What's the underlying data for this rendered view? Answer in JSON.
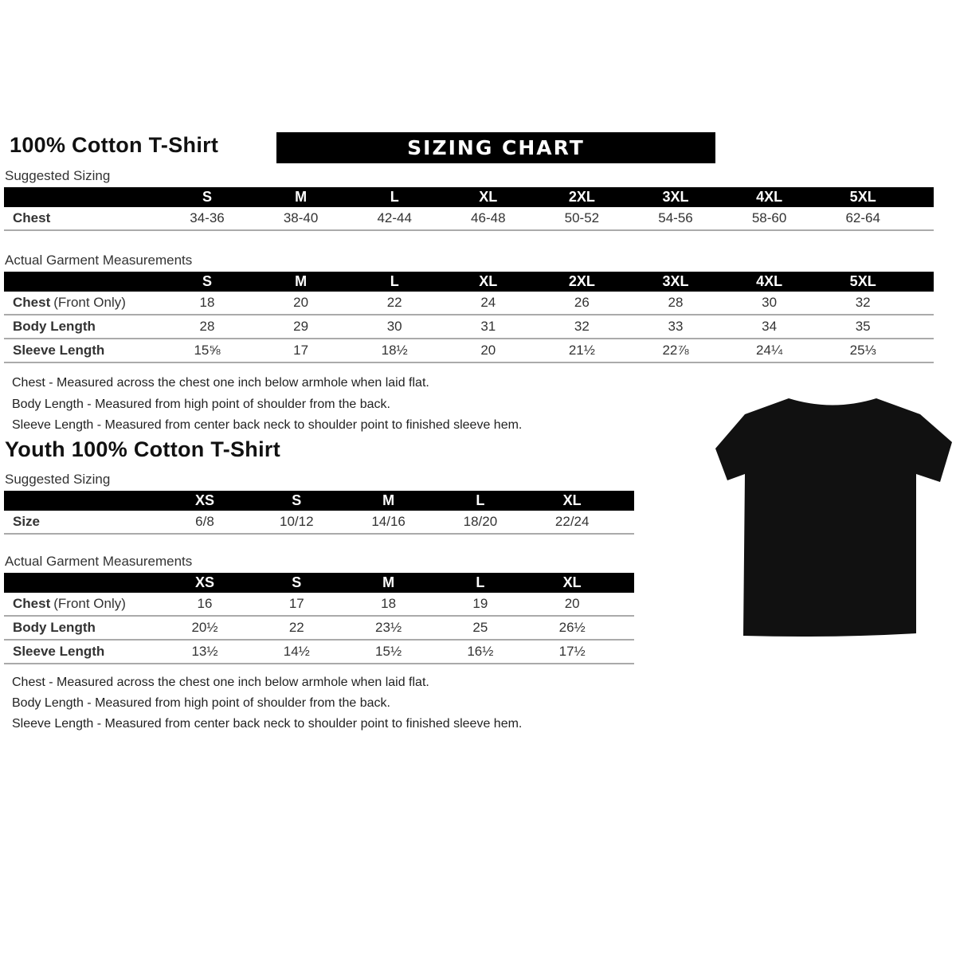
{
  "adult": {
    "title": "100% Cotton T-Shirt",
    "banner": "SIZING CHART",
    "suggested_label": "Suggested Sizing",
    "sizes": [
      "S",
      "M",
      "L",
      "XL",
      "2XL",
      "3XL",
      "4XL",
      "5XL"
    ],
    "suggested_rows": [
      {
        "label": "Chest",
        "values": [
          "34-36",
          "38-40",
          "42-44",
          "46-48",
          "50-52",
          "54-56",
          "58-60",
          "62-64"
        ]
      }
    ],
    "actual_label": "Actual Garment Measurements",
    "actual_rows": [
      {
        "label": "Chest",
        "label_suffix": "(Front Only)",
        "values": [
          "18",
          "20",
          "22",
          "24",
          "26",
          "28",
          "30",
          "32"
        ]
      },
      {
        "label": "Body Length",
        "values": [
          "28",
          "29",
          "30",
          "31",
          "32",
          "33",
          "34",
          "35"
        ]
      },
      {
        "label": "Sleeve Length",
        "values": [
          "15⅝",
          "17",
          "18½",
          "20",
          "21½",
          "22⅞",
          "24¼",
          "25⅓"
        ]
      }
    ],
    "notes": [
      "Chest - Measured across the chest one inch below armhole when laid flat.",
      "Body Length - Measured from high point of shoulder from the back.",
      "Sleeve Length - Measured from center back neck to shoulder point to finished sleeve hem."
    ]
  },
  "youth": {
    "title": "Youth 100% Cotton T-Shirt",
    "suggested_label": "Suggested Sizing",
    "sizes": [
      "XS",
      "S",
      "M",
      "L",
      "XL"
    ],
    "suggested_rows": [
      {
        "label": "Size",
        "values": [
          "6/8",
          "10/12",
          "14/16",
          "18/20",
          "22/24"
        ]
      }
    ],
    "actual_label": "Actual Garment Measurements",
    "actual_rows": [
      {
        "label": "Chest",
        "label_suffix": "(Front Only)",
        "values": [
          "16",
          "17",
          "18",
          "19",
          "20"
        ]
      },
      {
        "label": "Body Length",
        "values": [
          "20½",
          "22",
          "23½",
          "25",
          "26½"
        ]
      },
      {
        "label": "Sleeve Length",
        "values": [
          "13½",
          "14½",
          "15½",
          "16½",
          "17½"
        ]
      }
    ],
    "notes": [
      "Chest - Measured across the chest one inch below armhole when laid flat.",
      "Body Length - Measured from high point of shoulder from the back.",
      "Sleeve Length - Measured from center back neck to shoulder point to finished sleeve hem."
    ]
  },
  "shirt_color": "#111111"
}
